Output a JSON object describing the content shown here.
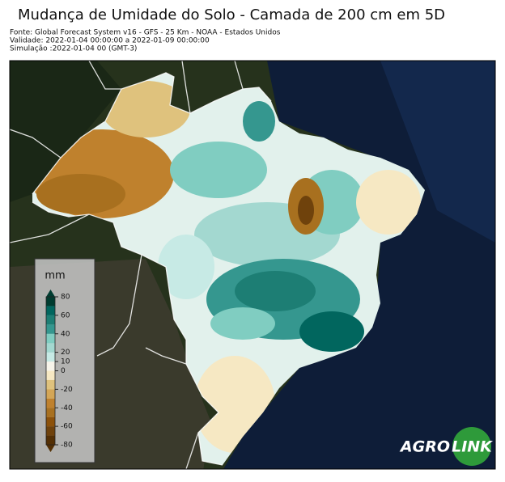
{
  "header": {
    "title": "Mudança de Umidade do Solo - Camada de 200 cm em 5D",
    "source": "Fonte: Global Forecast System v16 - GFS - 25 Km - NOAA - Estados Unidos",
    "validity": "Validade: 2022-01-04 00:00:00 a 2022-01-09 00:00:00",
    "simulation": "Simulação :2022-01-04 00 (GMT-3)"
  },
  "colorbar": {
    "unit": "mm",
    "ticks": [
      80,
      60,
      40,
      20,
      10,
      0,
      -20,
      -40,
      -60,
      -80
    ],
    "colors": [
      "#543005",
      "#6f420c",
      "#8c510a",
      "#a8701f",
      "#bf812d",
      "#d4a656",
      "#dfc27d",
      "#f6e8c3",
      "#f7f4ea",
      "#c7eae5",
      "#a3d8d0",
      "#80cdc1",
      "#35978f",
      "#1d7e74",
      "#01665e",
      "#003c30"
    ]
  },
  "logo": {
    "left": "AGRO",
    "right": "LINK"
  }
}
